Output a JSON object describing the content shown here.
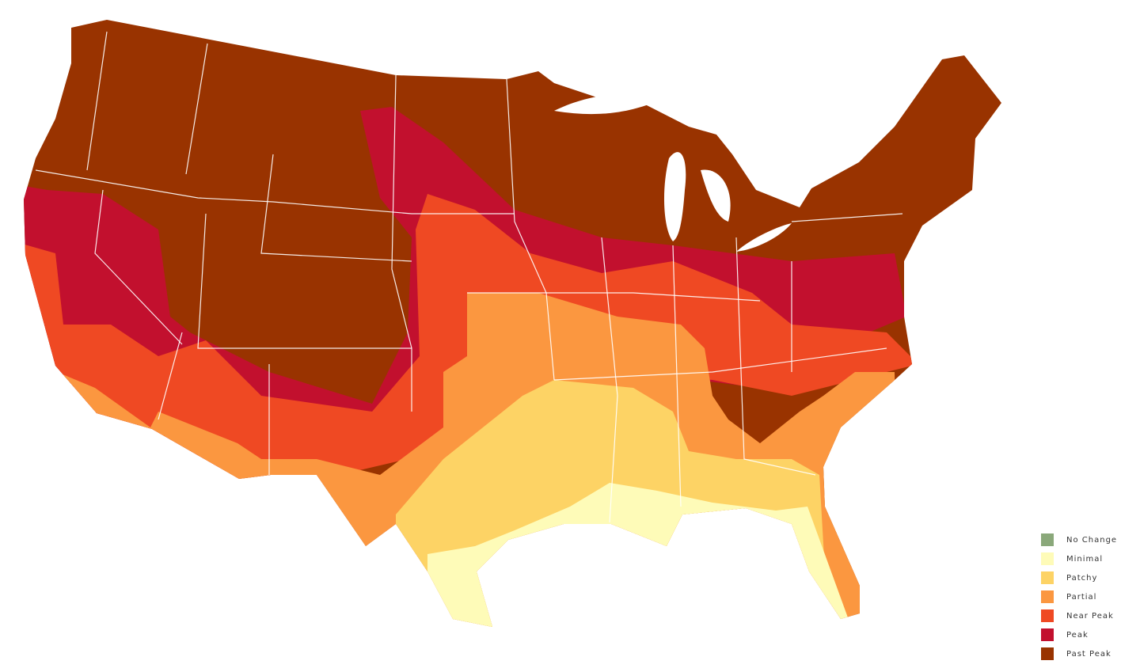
{
  "legend": {
    "items": [
      {
        "label": "No Change",
        "color": "#8aa87a"
      },
      {
        "label": "Minimal",
        "color": "#fefbb8"
      },
      {
        "label": "Patchy",
        "color": "#fdd365"
      },
      {
        "label": "Partial",
        "color": "#fb9740"
      },
      {
        "label": "Near Peak",
        "color": "#ef4923"
      },
      {
        "label": "Peak",
        "color": "#c2102e"
      },
      {
        "label": "Past Peak",
        "color": "#993300"
      }
    ]
  }
}
